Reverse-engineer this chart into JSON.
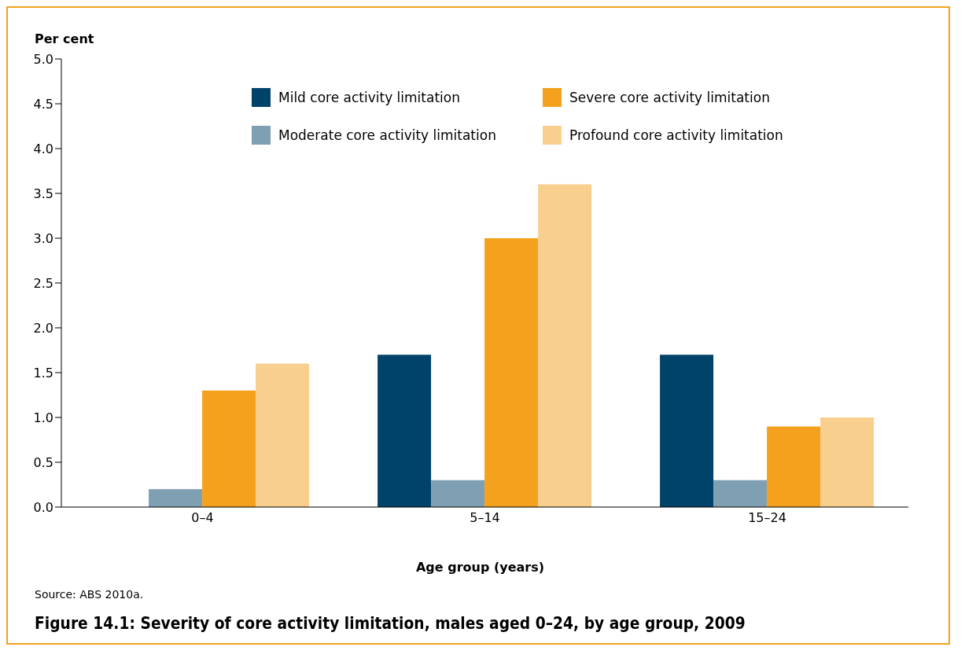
{
  "chart_data": {
    "type": "bar",
    "title": "Figure 14.1: Severity of core activity limitation, males aged 0–24, by age group, 2009",
    "xlabel": "Age group (years)",
    "ylabel": "Per cent",
    "annotations": [
      "Source: ABS 2010a."
    ],
    "categories": [
      "0–4",
      "5–14",
      "15–24"
    ],
    "series": [
      {
        "name": "Mild core activity limitation",
        "color": "#00436a",
        "values": [
          null,
          1.7,
          1.7
        ]
      },
      {
        "name": "Moderate core activity limitation",
        "color": "#7f9fb3",
        "values": [
          0.2,
          0.3,
          0.3
        ]
      },
      {
        "name": "Severe core activity limitation",
        "color": "#f4a11d",
        "values": [
          1.3,
          3.0,
          0.9
        ]
      },
      {
        "name": "Profound core activity limitation",
        "color": "#f9cf8f",
        "values": [
          1.6,
          3.6,
          1.0
        ]
      }
    ],
    "ylim": [
      0,
      5
    ],
    "yticks": [
      {
        "value": 0,
        "label": "0.0"
      },
      {
        "value": 0.5,
        "label": "0.5"
      },
      {
        "value": 1,
        "label": "1.0"
      },
      {
        "value": 1.5,
        "label": "1.5"
      },
      {
        "value": 2,
        "label": "2.0"
      },
      {
        "value": 2.5,
        "label": "2.5"
      },
      {
        "value": 3,
        "label": "3.0"
      },
      {
        "value": 3.5,
        "label": "3.5"
      },
      {
        "value": 4,
        "label": "4.0"
      },
      {
        "value": 4.5,
        "label": "4.5"
      },
      {
        "value": 5,
        "label": "5.0"
      }
    ],
    "grid": false,
    "legend": "top"
  }
}
